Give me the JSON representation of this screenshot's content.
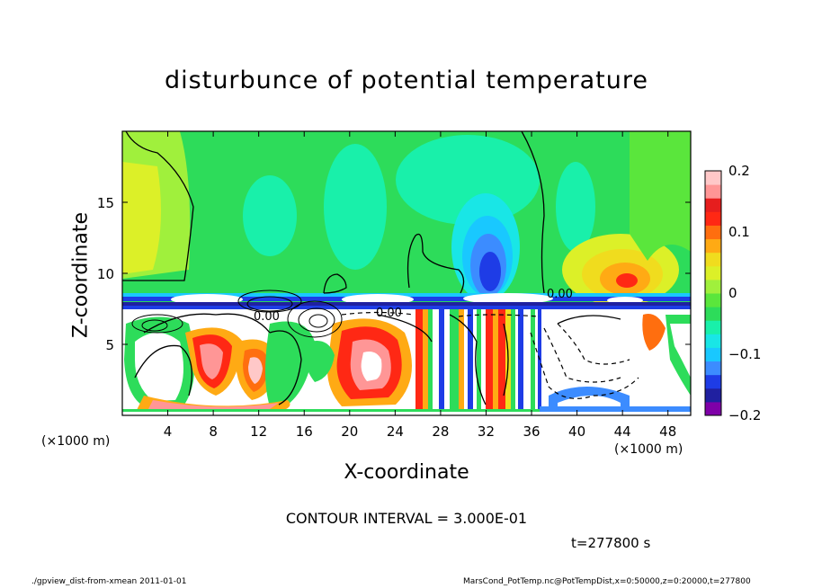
{
  "chart_data": {
    "type": "heatmap",
    "title": "disturbunce of potential temperature",
    "xlabel": "X-coordinate",
    "ylabel": "Z-coordinate",
    "x_unit": "(×1000 m)",
    "x_ticks": [
      4,
      8,
      12,
      16,
      20,
      24,
      28,
      32,
      36,
      40,
      44,
      48
    ],
    "y_ticks": [
      5,
      10,
      15
    ],
    "xlim": [
      0,
      50
    ],
    "ylim": [
      0,
      20
    ],
    "colorbar": {
      "ticks": [
        0.2,
        0.1,
        0,
        -0.1,
        -0.2
      ],
      "tick_labels": [
        "0.2",
        "0.1",
        "0",
        "−0.1",
        "−0.2"
      ],
      "range": [
        -0.2,
        0.2
      ],
      "colors": [
        "#7f00a8",
        "#2020a0",
        "#1e3ce6",
        "#3c8cff",
        "#19c8ff",
        "#19e6e6",
        "#19f0aa",
        "#2ddc5a",
        "#5ae63c",
        "#a0f03c",
        "#dcf028",
        "#f0dc1e",
        "#ffaa14",
        "#ff6e0f",
        "#ff2814",
        "#e61e1e",
        "#ff9696",
        "#ffc8c8"
      ]
    },
    "contour_labels": [
      "0.00",
      "0.00",
      "0.00"
    ],
    "grid": false
  },
  "contour_interval": "CONTOUR INTERVAL = 3.000E-01",
  "time_label": "t=277800  s",
  "footer_left": "./gpview_dist-from-xmean   2011-01-01",
  "footer_right": "MarsCond_PotTemp.nc@PotTempDist,x=0:50000,z=0:20000,t=277800"
}
